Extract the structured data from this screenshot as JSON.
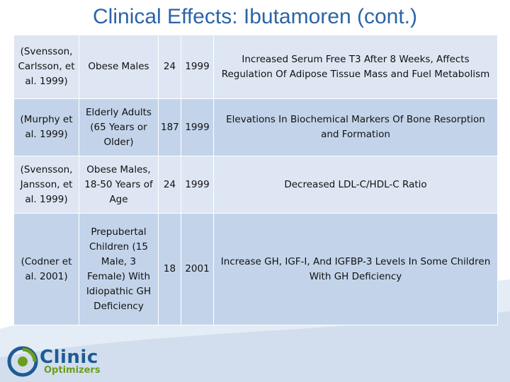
{
  "slide": {
    "title": "Clinical Effects: Ibutamoren (cont.)"
  },
  "table": {
    "rows": [
      {
        "study": "(Svensson, Carlsson, et al. 1999)",
        "population": "Obese Males",
        "n": "24",
        "year": "1999",
        "finding": "Increased Serum Free T3 After 8 Weeks, Affects Regulation Of Adipose Tissue Mass and Fuel Metabolism"
      },
      {
        "study": "(Murphy et al. 1999)",
        "population": "Elderly Adults (65 Years or Older)",
        "n": "187",
        "year": "1999",
        "finding": "Elevations In Biochemical Markers Of Bone Resorption and Formation"
      },
      {
        "study": "(Svensson, Jansson, et al. 1999)",
        "population": "Obese Males, 18-50 Years of Age",
        "n": "24",
        "year": "1999",
        "finding": "Decreased LDL-C/HDL-C Ratio"
      },
      {
        "study": "(Codner et al. 2001)",
        "population": "Prepubertal Children (15 Male, 3 Female) With Idiopathic GH Deficiency",
        "n": "18",
        "year": "2001",
        "finding": "Increase GH, IGF-I, And IGFBP-3 Levels In Some Children With GH Deficiency"
      }
    ]
  },
  "logo": {
    "line1": "Clinic",
    "line2": "Optimizers"
  },
  "colors": {
    "title": "#2b64a8",
    "row_light": "#dde6f2",
    "row_dark": "#c3d4ea",
    "swoosh": "#dbe5f0"
  }
}
